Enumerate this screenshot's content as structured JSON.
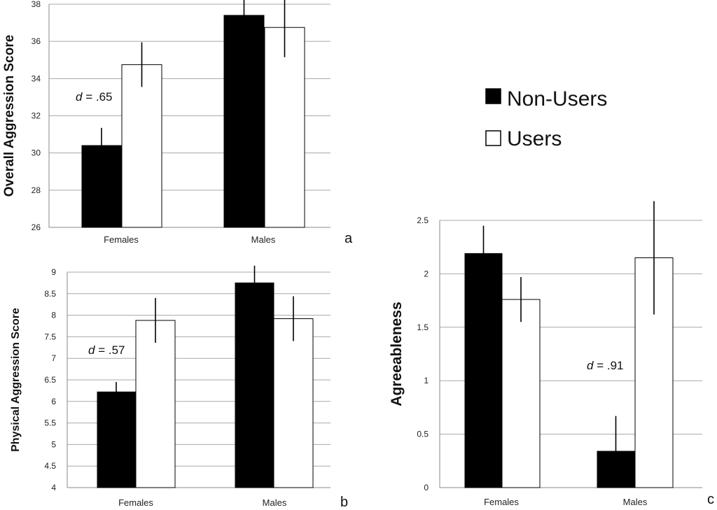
{
  "legend": {
    "entries": [
      {
        "label": "Non-Users",
        "color": "#000000"
      },
      {
        "label": "Users",
        "color": "#ffffff"
      }
    ]
  },
  "chart_data": [
    {
      "type": "bar",
      "panel": "a",
      "categories": [
        "Females",
        "Males"
      ],
      "series": [
        {
          "name": "Non-Users",
          "values": [
            30.4,
            37.4
          ],
          "errors": [
            0.95,
            0.85
          ]
        },
        {
          "name": "Users",
          "values": [
            34.75,
            36.75
          ],
          "errors": [
            1.2,
            1.6
          ]
        }
      ],
      "ylabel": "Overall Aggression Score",
      "ylim": [
        26,
        38
      ],
      "yticks": [
        26,
        28,
        30,
        32,
        34,
        36,
        38
      ],
      "annotation": {
        "prefix": "d",
        "text": " = .65",
        "category": "Females"
      },
      "grid": true
    },
    {
      "type": "bar",
      "panel": "b",
      "categories": [
        "Females",
        "Males"
      ],
      "series": [
        {
          "name": "Non-Users",
          "values": [
            6.22,
            8.75
          ],
          "errors": [
            0.23,
            0.4
          ]
        },
        {
          "name": "Users",
          "values": [
            7.88,
            7.92
          ],
          "errors": [
            0.52,
            0.52
          ]
        }
      ],
      "ylabel": "Physical Aggression Score",
      "ylim": [
        4,
        9
      ],
      "yticks": [
        "4",
        "4.5",
        "5",
        "5.5",
        "6",
        "6.5",
        "7",
        "7.5",
        "8",
        "8.5",
        "9"
      ],
      "annotation": {
        "prefix": "d",
        "text": " = .57",
        "category": "Females"
      },
      "grid": true
    },
    {
      "type": "bar",
      "panel": "c",
      "categories": [
        "Females",
        "Males"
      ],
      "series": [
        {
          "name": "Non-Users",
          "values": [
            2.19,
            0.34
          ],
          "errors": [
            0.26,
            0.33
          ]
        },
        {
          "name": "Users",
          "values": [
            1.76,
            2.15
          ],
          "errors": [
            0.21,
            0.53
          ]
        }
      ],
      "ylabel": "Agreeableness",
      "ylim": [
        0,
        2.5
      ],
      "yticks": [
        "0",
        "0.5",
        "1",
        "1.5",
        "2",
        "2.5"
      ],
      "annotation": {
        "prefix": "d",
        "text": " = .91",
        "category": "Males"
      },
      "grid": true
    }
  ]
}
